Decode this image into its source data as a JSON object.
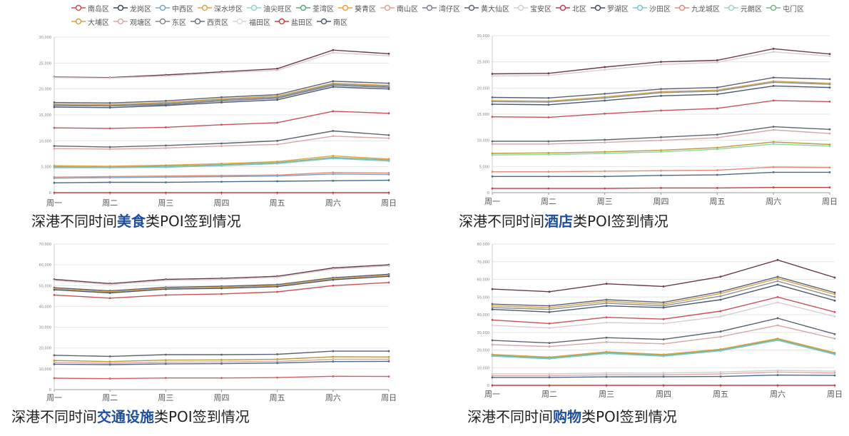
{
  "legend": [
    {
      "name": "南岛区",
      "color": "#c8525a"
    },
    {
      "name": "龙岗区",
      "color": "#3a4a68"
    },
    {
      "name": "中西区",
      "color": "#7aa2cc"
    },
    {
      "name": "深水埗区",
      "color": "#e6a23c"
    },
    {
      "name": "油尖旺区",
      "color": "#8fd5c2"
    },
    {
      "name": "荃湾区",
      "color": "#5aa87a"
    },
    {
      "name": "葵青区",
      "color": "#e8a23a"
    },
    {
      "name": "南山区",
      "color": "#e0a3a3"
    },
    {
      "name": "湾仔区",
      "color": "#7a7f8a"
    },
    {
      "name": "黄大仙区",
      "color": "#5c6470"
    },
    {
      "name": "宝安区",
      "color": "#d0d0d8"
    },
    {
      "name": "北区",
      "color": "#c43c4a"
    },
    {
      "name": "罗湖区",
      "color": "#434a58"
    },
    {
      "name": "沙田区",
      "color": "#7dc7d0"
    },
    {
      "name": "九龙城区",
      "color": "#e58a7a"
    },
    {
      "name": "元朗区",
      "color": "#9fd6c3"
    },
    {
      "name": "屯门区",
      "color": "#7ab08a"
    },
    {
      "name": "大埔区",
      "color": "#d4a24a"
    },
    {
      "name": "观塘区",
      "color": "#d8a7a7"
    },
    {
      "name": "东区",
      "color": "#808890"
    },
    {
      "name": "西贡区",
      "color": "#6a7282"
    },
    {
      "name": "福田区",
      "color": "#d8d8de"
    },
    {
      "name": "盐田区",
      "color": "#c04040"
    },
    {
      "name": "南区",
      "color": "#4a5a70"
    }
  ],
  "captions": [
    {
      "prefix": "深港不同时间",
      "highlight": "美食",
      "suffix": "类POI签到情况"
    },
    {
      "prefix": "深港不同时间",
      "highlight": "酒店",
      "suffix": "类POI签到情况"
    },
    {
      "prefix": "深港不同时间",
      "highlight": "交通设施",
      "suffix": "类POI签到情况"
    },
    {
      "prefix": "深港不同时间",
      "highlight": "购物",
      "suffix": "类POI签到情况"
    }
  ],
  "chart_data": [
    {
      "type": "line",
      "title": "深港不同时间美食类POI签到情况",
      "categories": [
        "周一",
        "周二",
        "周三",
        "周四",
        "周五",
        "周六",
        "周日"
      ],
      "ylim": [
        0,
        30000
      ],
      "yticks": [
        "0",
        "5,000",
        "10,000",
        "15,000",
        "20,000",
        "25,000",
        "30,000"
      ],
      "series": [
        {
          "name": "罗湖区",
          "color": "#6b3a4a",
          "values": [
            22300,
            22200,
            22700,
            23300,
            23900,
            27500,
            26800
          ]
        },
        {
          "name": "宝安区",
          "color": "#d8cdd0",
          "values": [
            22200,
            22100,
            22500,
            23100,
            23600,
            27000,
            26400
          ]
        },
        {
          "name": "龙岗区",
          "color": "#5a6272",
          "values": [
            17400,
            17300,
            17700,
            18400,
            18900,
            21500,
            21100
          ]
        },
        {
          "name": "大埔区",
          "color": "#d4a24a",
          "values": [
            17100,
            17000,
            17400,
            18100,
            18600,
            21100,
            20700
          ]
        },
        {
          "name": "东区",
          "color": "#8a9098",
          "values": [
            16900,
            16800,
            17200,
            17900,
            18400,
            20900,
            20500
          ]
        },
        {
          "name": "西贡区",
          "color": "#7a8090",
          "values": [
            16800,
            16700,
            17000,
            17700,
            18200,
            20700,
            20300
          ]
        },
        {
          "name": "南区",
          "color": "#4a5a70",
          "values": [
            16500,
            16400,
            16800,
            17400,
            17900,
            20400,
            20000
          ]
        },
        {
          "name": "北区",
          "color": "#c8525a",
          "values": [
            12500,
            12400,
            12600,
            13100,
            13500,
            15700,
            15300
          ]
        },
        {
          "name": "黄大仙区",
          "color": "#5c6470",
          "values": [
            9000,
            8800,
            9100,
            9500,
            10000,
            11900,
            11100
          ]
        },
        {
          "name": "观塘区",
          "color": "#d8a7a7",
          "values": [
            8500,
            8400,
            8600,
            9000,
            9300,
            10900,
            10500
          ]
        },
        {
          "name": "葵青区",
          "color": "#e8a23a",
          "values": [
            5200,
            5100,
            5300,
            5600,
            6000,
            7100,
            6500
          ]
        },
        {
          "name": "屯门区",
          "color": "#7ab08a",
          "values": [
            5000,
            4900,
            5100,
            5400,
            5800,
            6800,
            6300
          ]
        },
        {
          "name": "沙田区",
          "color": "#7dc7d0",
          "values": [
            4800,
            4800,
            4900,
            5200,
            5600,
            6600,
            6100
          ]
        },
        {
          "name": "九龙城区",
          "color": "#e58a7a",
          "values": [
            3000,
            3100,
            3200,
            3300,
            3400,
            3900,
            3800
          ]
        },
        {
          "name": "中西区",
          "color": "#7aa2cc",
          "values": [
            2800,
            2900,
            3000,
            3100,
            3200,
            3600,
            3500
          ]
        },
        {
          "name": "湾仔区",
          "color": "#4a6a8a",
          "values": [
            1900,
            2000,
            2000,
            2100,
            2200,
            2300,
            2400
          ]
        },
        {
          "name": "盐田区",
          "color": "#c04040",
          "values": [
            0,
            0,
            0,
            0,
            0,
            0,
            0
          ]
        }
      ]
    },
    {
      "type": "line",
      "title": "深港不同时间酒店类POI签到情况",
      "categories": [
        "周一",
        "周二",
        "周三",
        "周四",
        "周五",
        "周六",
        "周日"
      ],
      "ylim": [
        0,
        30000
      ],
      "yticks": [
        "0",
        "5,000",
        "10,000",
        "15,000",
        "20,000",
        "25,000",
        "30,000"
      ],
      "series": [
        {
          "name": "罗湖区",
          "color": "#6b3a4a",
          "values": [
            22700,
            22800,
            24000,
            25000,
            25300,
            27500,
            26500
          ]
        },
        {
          "name": "宝安区",
          "color": "#d8cdd0",
          "values": [
            22300,
            22400,
            23500,
            24500,
            24900,
            26900,
            26100
          ]
        },
        {
          "name": "龙岗区",
          "color": "#5a6272",
          "values": [
            18200,
            18100,
            18900,
            19800,
            20100,
            22000,
            21700
          ]
        },
        {
          "name": "大埔区",
          "color": "#d4a24a",
          "values": [
            17600,
            17500,
            18300,
            19300,
            19600,
            21300,
            20900
          ]
        },
        {
          "name": "东区",
          "color": "#8a9098",
          "values": [
            17400,
            17300,
            18100,
            19100,
            19400,
            21100,
            20700
          ]
        },
        {
          "name": "南区",
          "color": "#4a5a70",
          "values": [
            16900,
            16800,
            17600,
            18500,
            18800,
            20400,
            20100
          ]
        },
        {
          "name": "北区",
          "color": "#c8525a",
          "values": [
            14500,
            14400,
            15100,
            15700,
            16100,
            17600,
            17400
          ]
        },
        {
          "name": "黄大仙区",
          "color": "#5c6470",
          "values": [
            9800,
            9800,
            10100,
            10600,
            11100,
            12600,
            12100
          ]
        },
        {
          "name": "观塘区",
          "color": "#d8a7a7",
          "values": [
            9300,
            9300,
            9600,
            10000,
            10500,
            12000,
            11300
          ]
        },
        {
          "name": "大埔区",
          "color": "#b89a3a",
          "values": [
            7500,
            7600,
            7800,
            8100,
            8600,
            9700,
            9200
          ]
        },
        {
          "name": "屯门区",
          "color": "#8fd5a2",
          "values": [
            7200,
            7300,
            7500,
            7800,
            8300,
            9300,
            8900
          ]
        },
        {
          "name": "九龙城区",
          "color": "#e58a7a",
          "values": [
            4000,
            4000,
            4100,
            4200,
            4300,
            4900,
            4800
          ]
        },
        {
          "name": "湾仔区",
          "color": "#4a6a8a",
          "values": [
            3100,
            3100,
            3100,
            3300,
            3400,
            3900,
            3900
          ]
        },
        {
          "name": "盐田区",
          "color": "#c04040",
          "values": [
            800,
            800,
            800,
            900,
            900,
            1000,
            1000
          ]
        }
      ]
    },
    {
      "type": "line",
      "title": "深港不同时间交通设施类POI签到情况",
      "categories": [
        "周一",
        "周二",
        "周三",
        "周四",
        "周五",
        "周六",
        "周日"
      ],
      "ylim": [
        0,
        70000
      ],
      "yticks": [
        "0",
        "10,000",
        "20,000",
        "30,000",
        "40,000",
        "50,000",
        "60,000",
        "70,000"
      ],
      "series": [
        {
          "name": "罗湖区",
          "color": "#6b3a4a",
          "values": [
            53000,
            51000,
            53000,
            53500,
            54500,
            58500,
            60000
          ]
        },
        {
          "name": "宝安区",
          "color": "#d8cdd0",
          "values": [
            52500,
            50500,
            52500,
            53000,
            54000,
            58000,
            59500
          ]
        },
        {
          "name": "龙岗区",
          "color": "#5a6272",
          "values": [
            49000,
            47500,
            49200,
            49700,
            50500,
            53800,
            55500
          ]
        },
        {
          "name": "大埔区",
          "color": "#d4a24a",
          "values": [
            48500,
            47000,
            48800,
            49200,
            50000,
            53300,
            55000
          ]
        },
        {
          "name": "南区",
          "color": "#4a5a70",
          "values": [
            48000,
            46500,
            48300,
            48700,
            49500,
            52800,
            54500
          ]
        },
        {
          "name": "北区",
          "color": "#c8525a",
          "values": [
            45500,
            44000,
            45500,
            46000,
            47000,
            50000,
            51500
          ]
        },
        {
          "name": "黄大仙区",
          "color": "#5c6470",
          "values": [
            16500,
            16000,
            16800,
            16800,
            17000,
            18500,
            18500
          ]
        },
        {
          "name": "大埔区",
          "color": "#b89a3a",
          "values": [
            14000,
            13500,
            14200,
            14300,
            14600,
            15800,
            15700
          ]
        },
        {
          "name": "观塘区",
          "color": "#d8a7a7",
          "values": [
            13000,
            12700,
            13200,
            13300,
            13600,
            14600,
            14600
          ]
        },
        {
          "name": "南区",
          "color": "#4a6a8a",
          "values": [
            12200,
            12000,
            12400,
            12500,
            12800,
            13500,
            13600
          ]
        },
        {
          "name": "北区",
          "color": "#d06060",
          "values": [
            5500,
            5300,
            5600,
            5600,
            5800,
            6400,
            6300
          ]
        }
      ]
    },
    {
      "type": "line",
      "title": "深港不同时间购物类POI签到情况",
      "categories": [
        "周一",
        "周二",
        "周三",
        "周四",
        "周五",
        "周六",
        "周日"
      ],
      "ylim": [
        0,
        80000
      ],
      "yticks": [
        "0",
        "10,000",
        "20,000",
        "30,000",
        "40,000",
        "50,000",
        "60,000",
        "70,000",
        "80,000"
      ],
      "series": [
        {
          "name": "罗湖区",
          "color": "#6b3a4a",
          "values": [
            54500,
            53000,
            57500,
            56000,
            61500,
            71000,
            61000
          ]
        },
        {
          "name": "龙岗区",
          "color": "#5a6272",
          "values": [
            46000,
            45000,
            48500,
            47000,
            53000,
            61500,
            52500
          ]
        },
        {
          "name": "大埔区",
          "color": "#d4a24a",
          "values": [
            45000,
            44000,
            47500,
            46000,
            52000,
            60500,
            51500
          ]
        },
        {
          "name": "东区",
          "color": "#8a9098",
          "values": [
            44000,
            43000,
            46500,
            45000,
            50500,
            59000,
            50000
          ]
        },
        {
          "name": "南区",
          "color": "#4a5a70",
          "values": [
            43000,
            41500,
            45000,
            44000,
            48500,
            57000,
            48000
          ]
        },
        {
          "name": "北区",
          "color": "#c8525a",
          "values": [
            37000,
            35000,
            38500,
            37500,
            42000,
            50000,
            41500
          ]
        },
        {
          "name": "宝安区",
          "color": "#d8cdd0",
          "values": [
            34000,
            32500,
            35500,
            35000,
            39000,
            47000,
            39000
          ]
        },
        {
          "name": "黄大仙区",
          "color": "#5c6470",
          "values": [
            25500,
            24000,
            27000,
            26000,
            30500,
            38000,
            29000
          ]
        },
        {
          "name": "观塘区",
          "color": "#d8a7a7",
          "values": [
            23000,
            22000,
            24500,
            23500,
            27500,
            34000,
            26500
          ]
        },
        {
          "name": "葵青区",
          "color": "#e8a23a",
          "values": [
            17500,
            16000,
            19000,
            17500,
            20500,
            26500,
            18500
          ]
        },
        {
          "name": "屯门区",
          "color": "#7ab08a",
          "values": [
            17000,
            15500,
            18500,
            17000,
            20000,
            26000,
            18000
          ]
        },
        {
          "name": "沙田区",
          "color": "#7dc7d0",
          "values": [
            16500,
            15000,
            18000,
            16500,
            19500,
            25500,
            17500
          ]
        },
        {
          "name": "宝安区",
          "color": "#cfd0d6",
          "values": [
            6500,
            6500,
            7000,
            7000,
            7500,
            8500,
            8000
          ]
        },
        {
          "name": "九龙城区",
          "color": "#e5a5a5",
          "values": [
            5500,
            5500,
            6000,
            6000,
            6500,
            7500,
            7000
          ]
        },
        {
          "name": "湾仔区",
          "color": "#4a6a8a",
          "values": [
            4500,
            4500,
            4800,
            4900,
            5000,
            5800,
            5600
          ]
        },
        {
          "name": "盐田区",
          "color": "#c04040",
          "values": [
            0,
            0,
            0,
            0,
            0,
            0,
            0
          ]
        }
      ]
    }
  ]
}
